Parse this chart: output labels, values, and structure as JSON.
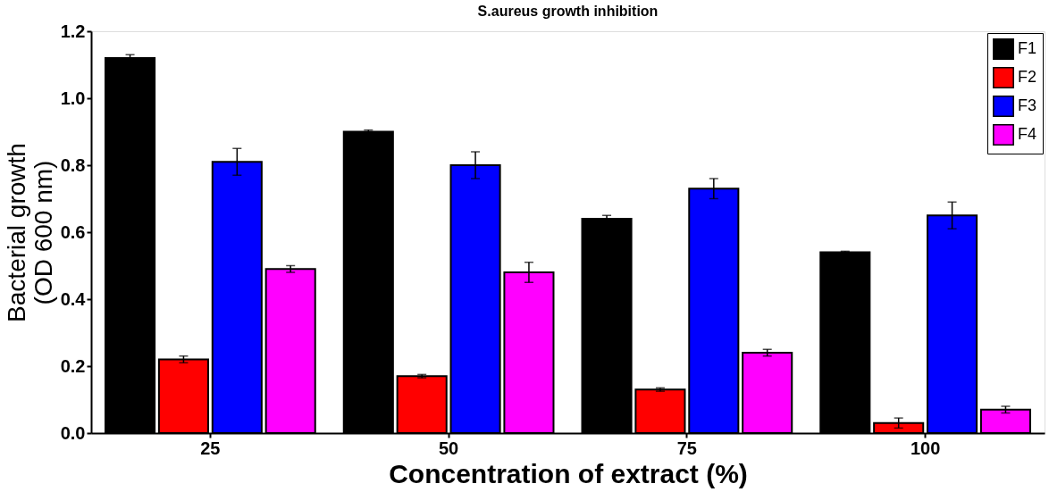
{
  "chart_data": {
    "type": "bar",
    "title": "S.aureus growth inhibition",
    "xlabel": "Concentration of extract (%)",
    "ylabel": "Bacterial growth\n(OD 600 nm)",
    "categories": [
      "25",
      "50",
      "75",
      "100"
    ],
    "series": [
      {
        "name": "F1",
        "color": "#000000",
        "values": [
          1.12,
          0.9,
          0.64,
          0.54
        ],
        "errors": [
          0.01,
          0.005,
          0.01,
          0.003
        ]
      },
      {
        "name": "F2",
        "color": "#ff0000",
        "values": [
          0.22,
          0.17,
          0.13,
          0.03
        ],
        "errors": [
          0.01,
          0.005,
          0.005,
          0.015
        ]
      },
      {
        "name": "F3",
        "color": "#0000ff",
        "values": [
          0.81,
          0.8,
          0.73,
          0.65
        ],
        "errors": [
          0.04,
          0.04,
          0.03,
          0.04
        ]
      },
      {
        "name": "F4",
        "color": "#ff00ff",
        "values": [
          0.49,
          0.48,
          0.24,
          0.07
        ],
        "errors": [
          0.01,
          0.03,
          0.01,
          0.01
        ]
      }
    ],
    "ylim": [
      0,
      1.2
    ],
    "yticks": [
      {
        "value": 0,
        "label": "0.0"
      },
      0.2,
      0.4,
      0.6,
      0.8,
      {
        "value": 1,
        "label": "1.0"
      },
      1.2
    ],
    "grid": false,
    "legend": "top right"
  }
}
